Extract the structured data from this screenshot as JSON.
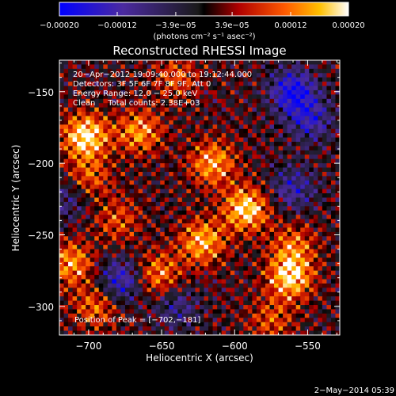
{
  "chart_data": {
    "type": "heatmap",
    "title": "Reconstructed RHESSI Image",
    "xlabel": "Heliocentric X (arcsec)",
    "ylabel": "Heliocentric Y (arcsec)",
    "xlim": [
      -720,
      -528
    ],
    "ylim": [
      -320,
      -128
    ],
    "x_ticks": [
      -700,
      -650,
      -600,
      -550
    ],
    "y_ticks": [
      -150,
      -200,
      -250,
      -300
    ],
    "x_tick_labels": [
      "−700",
      "−650",
      "−600",
      "−550"
    ],
    "y_tick_labels": [
      "−150",
      "−200",
      "−250",
      "−300"
    ],
    "colorbar": {
      "range": [
        -0.0002,
        0.0002
      ],
      "ticks": [
        -0.0002,
        -0.00012,
        -3.9e-05,
        3.9e-05,
        0.00012,
        0.0002
      ],
      "tick_labels": [
        "−0.00020",
        "−0.00012",
        "−3.9e−05",
        "3.9e−05",
        "0.00012",
        "0.00020"
      ],
      "units": "(photons cm⁻² s⁻¹ asec⁻²)"
    },
    "annotations": [
      "20−Apr−2012 19:09:40.000 to 19:12:44.000",
      "Detectors: 3F 5F 6F 7F 8F 9F, Att 0",
      "Energy Range: 12.0 − 25.0 keV",
      "Clean     Total counts: 2.38E+03"
    ],
    "peak_text": "Position of Peak = [−702,−181]",
    "peak": [
      -702,
      -181
    ],
    "sources": [
      {
        "x": -702,
        "y": -181,
        "amp": 1.0
      },
      {
        "x": -665,
        "y": -178,
        "amp": 0.7
      },
      {
        "x": -615,
        "y": -200,
        "amp": 0.75
      },
      {
        "x": -592,
        "y": -232,
        "amp": 0.95
      },
      {
        "x": -622,
        "y": -255,
        "amp": 0.8
      },
      {
        "x": -562,
        "y": -280,
        "amp": 0.9
      },
      {
        "x": -560,
        "y": -258,
        "amp": 0.55
      },
      {
        "x": -652,
        "y": -278,
        "amp": 0.65
      },
      {
        "x": -712,
        "y": -270,
        "amp": 0.7
      },
      {
        "x": -695,
        "y": -300,
        "amp": 0.55
      },
      {
        "x": -680,
        "y": -240,
        "amp": 0.45
      },
      {
        "x": -700,
        "y": -210,
        "amp": 0.5
      },
      {
        "x": -575,
        "y": -310,
        "amp": 0.45
      },
      {
        "x": -640,
        "y": -140,
        "amp": 0.45
      }
    ],
    "negative_regions": [
      {
        "x": -560,
        "y": -150,
        "amp": -0.9
      },
      {
        "x": -548,
        "y": -170,
        "amp": -0.6
      },
      {
        "x": -560,
        "y": -218,
        "amp": -0.55
      },
      {
        "x": -678,
        "y": -282,
        "amp": -0.7
      },
      {
        "x": -640,
        "y": -300,
        "amp": -0.45
      },
      {
        "x": -715,
        "y": -225,
        "amp": -0.4
      }
    ]
  },
  "footer": {
    "timestamp": "2−May−2014 05:39"
  }
}
